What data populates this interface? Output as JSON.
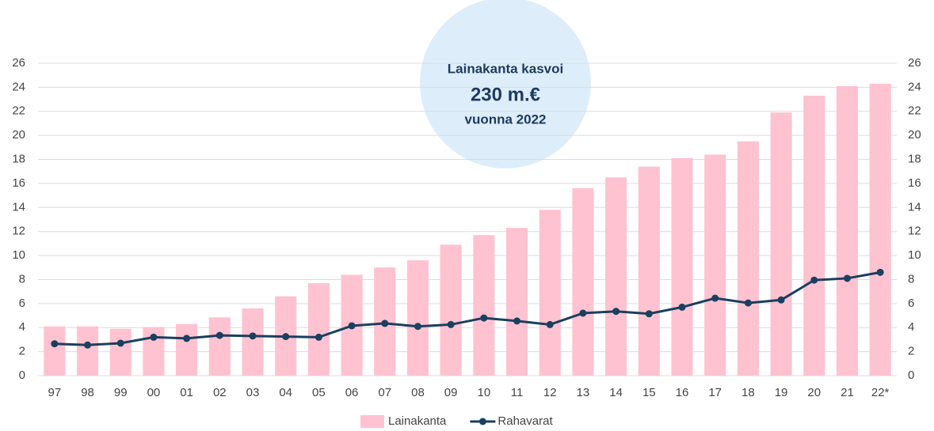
{
  "chart_data": {
    "type": "bar",
    "categories": [
      "97",
      "98",
      "99",
      "00",
      "01",
      "02",
      "03",
      "04",
      "05",
      "06",
      "07",
      "08",
      "09",
      "10",
      "11",
      "12",
      "13",
      "14",
      "15",
      "16",
      "17",
      "18",
      "19",
      "20",
      "21",
      "22*"
    ],
    "series": [
      {
        "name": "Lainakanta",
        "type": "bar",
        "color": "#ffc2d1",
        "values": [
          4.1,
          4.1,
          3.9,
          4.05,
          4.3,
          4.85,
          5.6,
          6.6,
          7.7,
          8.4,
          9.0,
          9.6,
          10.9,
          11.7,
          12.3,
          13.8,
          15.6,
          16.5,
          17.4,
          18.1,
          18.4,
          19.5,
          21.9,
          23.3,
          24.1,
          24.3
        ]
      },
      {
        "name": "Rahavarat",
        "type": "line",
        "axis": "y2",
        "color": "#1a3f5f",
        "values": [
          2.65,
          2.55,
          2.7,
          3.2,
          3.1,
          3.35,
          3.3,
          3.25,
          3.2,
          4.15,
          4.35,
          4.1,
          4.25,
          4.8,
          4.55,
          4.25,
          5.2,
          5.35,
          5.15,
          5.7,
          6.45,
          6.05,
          6.3,
          7.95,
          8.1,
          8.6
        ]
      }
    ],
    "ylim": [
      0,
      26
    ],
    "yticks": [
      0,
      2,
      4,
      6,
      8,
      10,
      12,
      14,
      16,
      18,
      20,
      22,
      24,
      26
    ],
    "y2lim": [
      0,
      26
    ],
    "y2ticks": [
      0,
      2,
      4,
      6,
      8,
      10,
      12,
      14,
      16,
      18,
      20,
      22,
      24,
      26
    ],
    "grid": true,
    "legend": "bottom",
    "annotations": [
      "Lainakanta kasvoi",
      "230 m.€",
      "vuonna 2022"
    ]
  }
}
